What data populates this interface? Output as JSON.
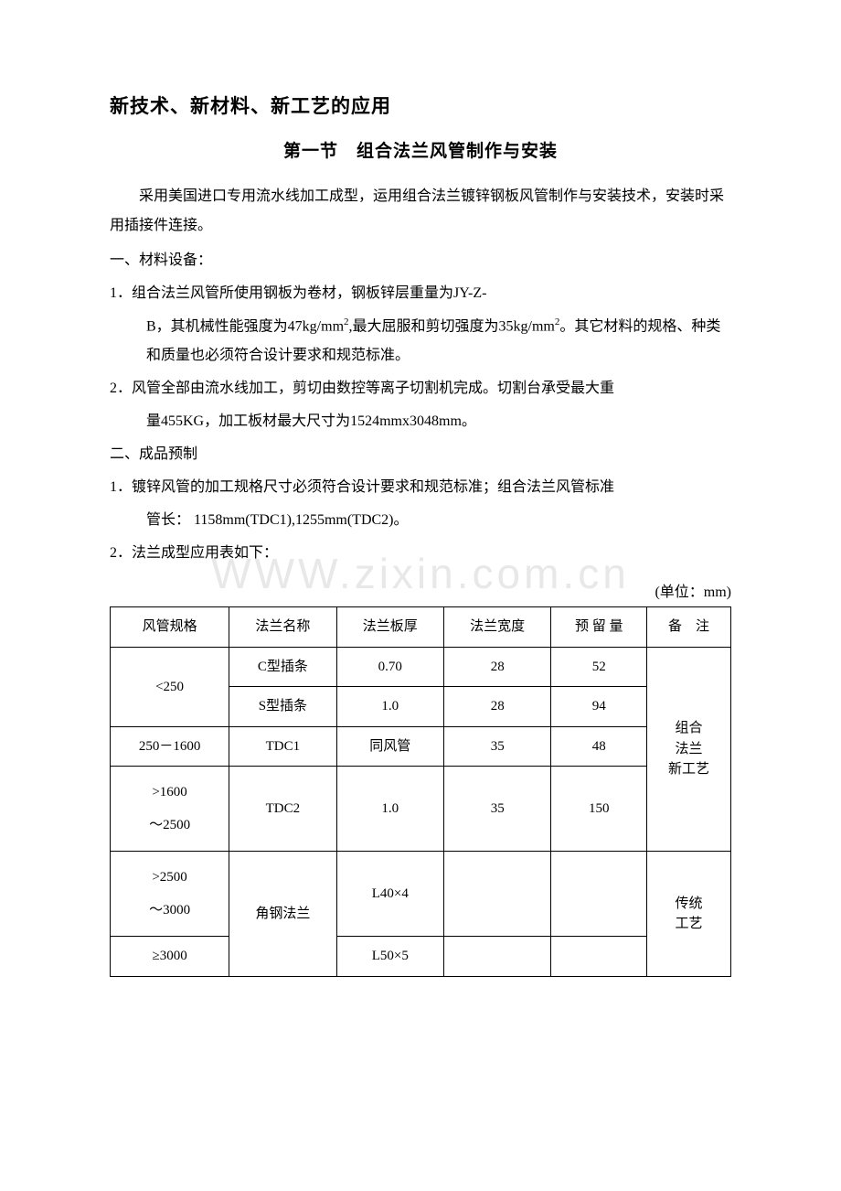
{
  "title": "新技术、新材料、新工艺的应用",
  "subtitle": "第一节　组合法兰风管制作与安装",
  "intro": "采用美国进口专用流水线加工成型，运用组合法兰镀锌钢板风管制作与安装技术，安装时采用插接件连接。",
  "sec1_heading": "一、材料设备：",
  "sec1_item1": "1．组合法兰风管所使用钢板为卷材，钢板锌层重量为JY-Z-",
  "sec1_item1b": "B，其机械性能强度为47kg/mm",
  "sec1_item1b_after": ",最大屈服和剪切强度为35kg/mm",
  "sec1_item1b_tail": "。其它材料的规格、种类和质量也必须符合设计要求和规范标准。",
  "sec1_item2": "2．风管全部由流水线加工，剪切由数控等离子切割机完成。切割台承受最大重量455KG，加工板材最大尺寸为1524mmx3048mm。",
  "sec2_heading": "二、成品预制",
  "sec2_item1": "1．镀锌风管的加工规格尺寸必须符合设计要求和规范标准；组合法兰风管标准管长： 1158mm(TDC1),1255mm(TDC2)。",
  "sec2_item2": "2．法兰成型应用表如下：",
  "unit_label": "(单位：mm)",
  "watermark": "WWW.zixin.com.cn",
  "table": {
    "headers": [
      "风管规格",
      "法兰名称",
      "法兰板厚",
      "法兰宽度",
      "预 留 量",
      "备　注"
    ],
    "rows": [
      {
        "spec": "<250",
        "spec_rowspan": 2,
        "name": "C型插条",
        "thick": "0.70",
        "width": "28",
        "reserve": "52",
        "note": "组合法兰新工艺",
        "note_rowspan": 4,
        "note_seg1": "",
        "note_seg2": "组合",
        "note_seg3": "法兰",
        "note_seg4": "新工艺"
      },
      {
        "name": "S型插条",
        "thick": "1.0",
        "width": "28",
        "reserve": "94"
      },
      {
        "spec": "250－1600",
        "name": "TDC1",
        "thick": "同风管",
        "width": "35",
        "reserve": "48"
      },
      {
        "spec": ">1600\n～2500",
        "name": "TDC2",
        "thick": "1.0",
        "width": "35",
        "reserve": "150"
      },
      {
        "spec": ">2500\n～3000",
        "spec_rowspan": 1,
        "name": "角钢法兰",
        "name_rowspan": 2,
        "thick": "L40×4",
        "width": "",
        "reserve": "",
        "note": "传统工艺",
        "note_rowspan": 2,
        "note_seg1": "传统",
        "note_seg2": "工艺"
      },
      {
        "spec": "≥3000",
        "thick": "L50×5",
        "width": "",
        "reserve": ""
      }
    ]
  }
}
